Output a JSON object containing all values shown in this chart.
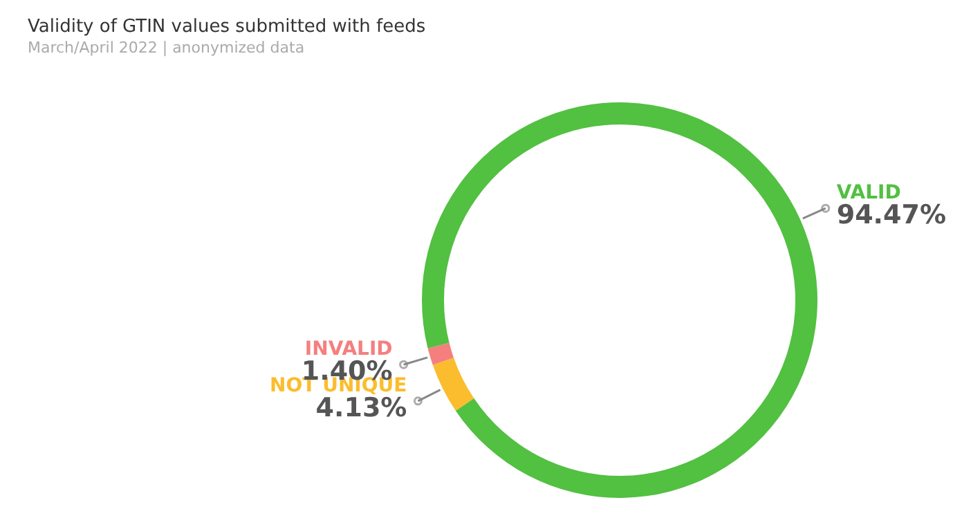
{
  "chart_data": {
    "type": "donut",
    "title": "Validity of GTIN values submitted with feeds",
    "subtitle": "March/April 2022 | anonymized data",
    "categories": [
      "NOT UNIQUE",
      "INVALID",
      "VALID"
    ],
    "values": [
      4.13,
      1.4,
      94.47
    ],
    "value_labels": [
      "4.13%",
      "1.40%",
      "94.47%"
    ],
    "colors": [
      "#fbbd2e",
      "#f57f7f",
      "#52c041"
    ],
    "legend": false
  }
}
